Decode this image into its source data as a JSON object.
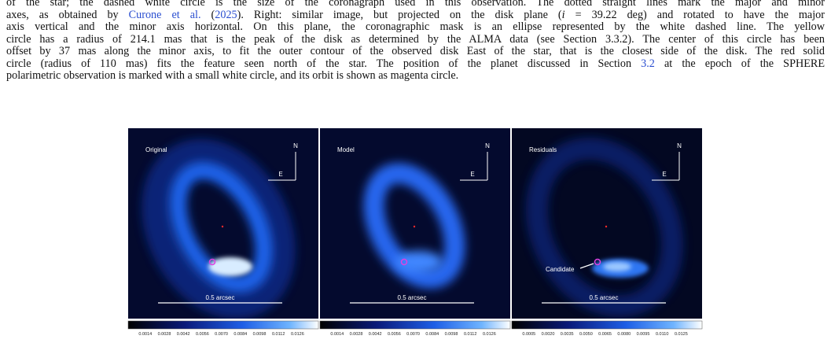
{
  "caption": {
    "lines": [
      [
        {
          "text": "of the star; the dashed white circle is the size of the coronagraph used in this observation. The dotted straight lines mark the major and minor"
        }
      ],
      [
        {
          "text": "axes, as obtained by "
        },
        {
          "text": "Curone et al.",
          "style": "link"
        },
        {
          "text": " ("
        },
        {
          "text": "2025",
          "style": "link"
        },
        {
          "text": "). Right: similar image, but projected on the disk plane ("
        },
        {
          "text": "i",
          "style": "italic"
        },
        {
          "text": " = 39.22 deg) and rotated to have the major"
        }
      ],
      [
        {
          "text": "axis vertical and the minor axis horizontal. On this plane, the coronagraphic mask is an ellipse represented by the white dashed line. The yellow"
        }
      ],
      [
        {
          "text": "circle has a radius of 214.1 mas that is the peak of the disk as determined by the ALMA data (see Section 3.3.2). The center of this circle has been"
        }
      ],
      [
        {
          "text": "offset by 37 mas along the minor axis, to fit the outer contour of the observed disk East of the star, that is the closest side of the disk. The red solid"
        }
      ],
      [
        {
          "text": "circle (radius of 110 mas) fits the feature seen north of the star. The position of the planet discussed in Section "
        },
        {
          "text": "3.2",
          "style": "link"
        },
        {
          "text": " at the epoch of the SPHERE"
        }
      ],
      [
        {
          "text": "polarimetric observation is marked with a small white circle, and its orbit is shown as magenta circle."
        }
      ]
    ]
  },
  "panels": [
    {
      "title": "Original",
      "north": "N",
      "east": "E",
      "scale_bar": "0.5 arcsec",
      "colorbar_ticks": [
        "0.0014",
        "0.0028",
        "0.0042",
        "0.0056",
        "0.0070",
        "0.0084",
        "0.0098",
        "0.0112",
        "0.0126"
      ]
    },
    {
      "title": "Model",
      "north": "N",
      "east": "E",
      "scale_bar": "0.5 arcsec",
      "colorbar_ticks": [
        "0.0014",
        "0.0028",
        "0.0042",
        "0.0056",
        "0.0070",
        "0.0084",
        "0.0098",
        "0.0112",
        "0.0126"
      ]
    },
    {
      "title": "Residuals",
      "north": "N",
      "east": "E",
      "scale_bar": "0.5 arcsec",
      "annotation": "Candidate",
      "colorbar_ticks": [
        "0.0005",
        "0.0020",
        "0.0035",
        "0.0050",
        "0.0065",
        "0.0080",
        "0.0095",
        "0.0110",
        "0.0125"
      ]
    }
  ]
}
